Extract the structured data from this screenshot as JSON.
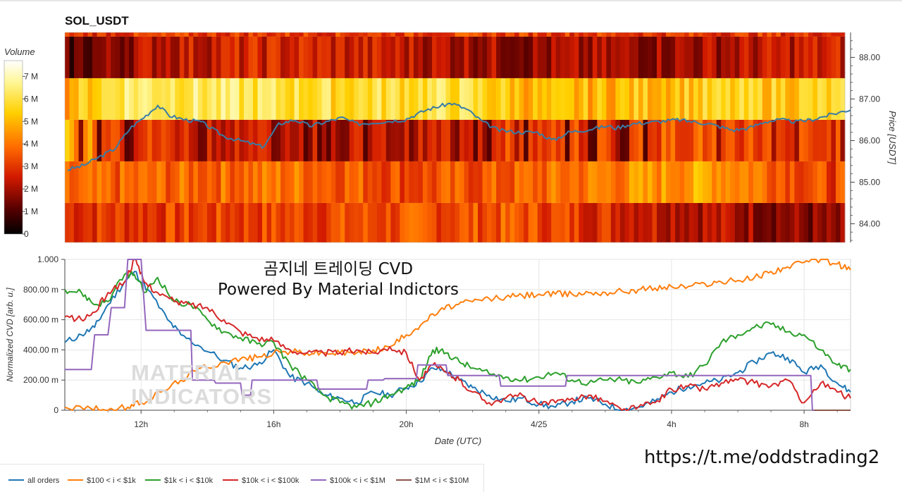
{
  "symbol": "SOL_USDT",
  "volume_title": "Volume",
  "overlay": {
    "title_line1": "곰지네 트레이딩 CVD",
    "title_line2": "Powered By Material Indictors",
    "logo_line1": "MATERIAL",
    "logo_line2": "INDICATORS",
    "link": "https://t.me/oddstrading2"
  },
  "colors": {
    "all_orders": "#1f77b4",
    "s100_1k": "#ff7f0e",
    "s1k_10k": "#2ca02c",
    "s10k_100k": "#d62728",
    "s100k_1m": "#9467bd",
    "s1m_10m": "#8c564b",
    "price_line": "#3a7ca5"
  },
  "chart_data": [
    {
      "type": "heatmap",
      "title": "SOL_USDT",
      "ylabel": "Price [USDT]",
      "ylim": [
        83.55,
        88.6
      ],
      "yticks": [
        "84.00",
        "85.00",
        "86.00",
        "87.00",
        "88.00"
      ],
      "colorbar": {
        "title": "Volume",
        "range": [
          0,
          7700000
        ],
        "ticks": [
          "0",
          "1 M",
          "2 M",
          "3 M",
          "4 M",
          "5 M",
          "6 M",
          "7 M"
        ],
        "colormap": "hot"
      },
      "price_bins": [
        {
          "low": 83.55,
          "high": 84.5,
          "volume_profile": [
            [
              0,
              3.0
            ],
            [
              0.58,
              3.5
            ],
            [
              0.975,
              1.5
            ]
          ]
        },
        {
          "low": 84.5,
          "high": 85.5,
          "volume_profile": [
            [
              0,
              3.5
            ],
            [
              0.3,
              4.0
            ],
            [
              0.45,
              3.3
            ],
            [
              0.58,
              3.6
            ],
            [
              0.83,
              4.8
            ],
            [
              0.975,
              3.2
            ]
          ]
        },
        {
          "low": 85.5,
          "high": 86.5,
          "volume_profile": [
            [
              0,
              5.0
            ],
            [
              0.08,
              3.2
            ],
            [
              0.16,
              2.8
            ],
            [
              0.3,
              2.4
            ],
            [
              0.45,
              2.2
            ],
            [
              0.55,
              3.4
            ],
            [
              0.62,
              3.0
            ],
            [
              0.8,
              3.6
            ],
            [
              0.975,
              3.0
            ]
          ]
        },
        {
          "low": 86.5,
          "high": 87.5,
          "volume_profile": [
            [
              0,
              4.8
            ],
            [
              0.08,
              6.5
            ],
            [
              0.2,
              6.2
            ],
            [
              0.35,
              5.8
            ],
            [
              0.5,
              6.0
            ],
            [
              0.62,
              4.8
            ],
            [
              0.8,
              5.4
            ],
            [
              0.975,
              5.5
            ]
          ]
        },
        {
          "low": 87.5,
          "high": 88.5,
          "volume_profile": [
            [
              0,
              1.0
            ],
            [
              0.12,
              2.4
            ],
            [
              0.3,
              2.7
            ],
            [
              0.5,
              2.2
            ],
            [
              0.6,
              1.8
            ],
            [
              0.8,
              2.0
            ],
            [
              0.975,
              2.5
            ]
          ]
        },
        {
          "low": 88.5,
          "high": 88.6,
          "volume_profile": [
            [
              0,
              3.0
            ],
            [
              0.5,
              3.2
            ],
            [
              1.0,
              3.0
            ]
          ]
        }
      ],
      "price_series": {
        "name": "Price",
        "x": [
          0,
          0.02,
          0.04,
          0.06,
          0.08,
          0.1,
          0.115,
          0.13,
          0.15,
          0.17,
          0.2,
          0.22,
          0.25,
          0.27,
          0.29,
          0.31,
          0.33,
          0.35,
          0.37,
          0.4,
          0.43,
          0.46,
          0.49,
          0.51,
          0.53,
          0.55,
          0.575,
          0.6,
          0.62,
          0.64,
          0.66,
          0.69,
          0.7,
          0.72,
          0.75,
          0.78,
          0.8,
          0.82,
          0.85,
          0.87,
          0.89,
          0.91,
          0.93,
          0.95,
          0.97,
          1.0
        ],
        "y": [
          85.3,
          85.4,
          85.6,
          85.8,
          86.3,
          86.6,
          86.85,
          86.6,
          86.5,
          86.45,
          86.1,
          86.0,
          85.85,
          86.4,
          86.5,
          86.35,
          86.45,
          86.55,
          86.4,
          86.45,
          86.5,
          86.75,
          86.9,
          86.75,
          86.45,
          86.25,
          86.2,
          86.2,
          86.0,
          86.2,
          86.25,
          86.35,
          86.3,
          86.4,
          86.45,
          86.5,
          86.45,
          86.4,
          86.25,
          86.3,
          86.45,
          86.5,
          86.45,
          86.5,
          86.6,
          86.75
        ]
      }
    },
    {
      "type": "line",
      "xlabel": "Date (UTC)",
      "ylabel": "Normalized CVD [arb. u.]",
      "ylim": [
        0,
        1.0
      ],
      "xlim": [
        9.7,
        33.4
      ],
      "xticks": [
        {
          "value": 12,
          "label": "12h"
        },
        {
          "value": 16,
          "label": "16h"
        },
        {
          "value": 20,
          "label": "20h"
        },
        {
          "value": 24,
          "label": "4/25"
        },
        {
          "value": 28,
          "label": "4h"
        },
        {
          "value": 32,
          "label": "8h"
        }
      ],
      "yticks": [
        {
          "value": 0,
          "label": "0"
        },
        {
          "value": 0.2,
          "label": "200.00 m"
        },
        {
          "value": 0.4,
          "label": "400.00 m"
        },
        {
          "value": 0.6,
          "label": "600.00 m"
        },
        {
          "value": 0.8,
          "label": "800.00 m"
        },
        {
          "value": 1.0,
          "label": "1.000"
        }
      ],
      "series": [
        {
          "name": "all orders",
          "legend": "all orders",
          "color_key": "all_orders",
          "x": [
            9.7,
            10.2,
            10.6,
            11.0,
            11.5,
            11.8,
            12.2,
            12.8,
            13.2,
            13.8,
            14.5,
            15.0,
            15.5,
            16.0,
            16.5,
            17.0,
            17.5,
            18.0,
            18.5,
            19.0,
            19.5,
            20.0,
            20.4,
            20.8,
            21.2,
            21.6,
            22.0,
            22.5,
            23.0,
            23.5,
            24.0,
            24.5,
            25.0,
            25.5,
            26.0,
            26.5,
            27.0,
            27.5,
            28.0,
            28.5,
            29.0,
            29.5,
            30.0,
            30.5,
            31.0,
            31.5,
            32.0,
            32.5,
            33.0,
            33.4
          ],
          "y": [
            0.45,
            0.5,
            0.55,
            0.7,
            0.85,
            0.92,
            0.8,
            0.6,
            0.5,
            0.42,
            0.33,
            0.28,
            0.3,
            0.4,
            0.22,
            0.18,
            0.1,
            0.08,
            0.05,
            0.12,
            0.1,
            0.15,
            0.19,
            0.28,
            0.26,
            0.2,
            0.15,
            0.1,
            0.06,
            0.08,
            0.04,
            0.02,
            0.06,
            0.08,
            0.04,
            0.0,
            0.02,
            0.06,
            0.12,
            0.16,
            0.18,
            0.2,
            0.25,
            0.32,
            0.38,
            0.35,
            0.25,
            0.3,
            0.18,
            0.12
          ]
        },
        {
          "name": "$100 < i < $1k",
          "legend": "$100 < i < $1k",
          "color_key": "s100_1k",
          "x": [
            9.7,
            10.5,
            11.0,
            11.6,
            12.0,
            12.6,
            13.2,
            13.8,
            14.5,
            15.0,
            15.5,
            16.0,
            16.5,
            17.0,
            17.5,
            18.0,
            18.5,
            19.0,
            19.5,
            20.0,
            20.5,
            21.0,
            21.5,
            22.0,
            22.5,
            23.0,
            23.5,
            24.0,
            24.5,
            25.0,
            25.5,
            26.0,
            26.5,
            27.0,
            27.5,
            28.0,
            28.5,
            29.0,
            29.5,
            30.0,
            30.5,
            31.0,
            31.5,
            32.0,
            32.5,
            33.0,
            33.4
          ],
          "y": [
            0.02,
            0.01,
            0.0,
            0.02,
            0.05,
            0.12,
            0.2,
            0.28,
            0.32,
            0.34,
            0.35,
            0.38,
            0.39,
            0.38,
            0.38,
            0.38,
            0.38,
            0.4,
            0.42,
            0.5,
            0.58,
            0.66,
            0.7,
            0.72,
            0.74,
            0.75,
            0.76,
            0.77,
            0.77,
            0.77,
            0.78,
            0.78,
            0.79,
            0.8,
            0.81,
            0.82,
            0.82,
            0.84,
            0.85,
            0.86,
            0.88,
            0.92,
            0.95,
            0.98,
            1.0,
            0.97,
            0.93
          ]
        },
        {
          "name": "$1k < i < $10k",
          "legend": "$1k < i < $10k",
          "color_key": "s1k_10k",
          "x": [
            9.7,
            10.2,
            10.6,
            11.0,
            11.5,
            11.8,
            12.1,
            12.5,
            13.0,
            13.5,
            14.0,
            14.5,
            15.0,
            15.5,
            16.0,
            16.5,
            17.0,
            17.5,
            18.0,
            18.5,
            19.0,
            19.5,
            20.0,
            20.4,
            20.8,
            21.2,
            21.6,
            22.0,
            22.5,
            23.0,
            23.5,
            24.0,
            24.5,
            25.0,
            25.5,
            26.0,
            26.5,
            27.0,
            27.5,
            28.0,
            28.5,
            29.0,
            29.5,
            30.0,
            30.5,
            31.0,
            31.5,
            32.0,
            32.5,
            33.0,
            33.4
          ],
          "y": [
            0.8,
            0.78,
            0.7,
            0.72,
            0.9,
            0.9,
            0.78,
            0.88,
            0.72,
            0.7,
            0.6,
            0.52,
            0.48,
            0.44,
            0.45,
            0.3,
            0.2,
            0.1,
            0.05,
            0.02,
            0.05,
            0.1,
            0.15,
            0.2,
            0.4,
            0.38,
            0.32,
            0.28,
            0.24,
            0.22,
            0.2,
            0.22,
            0.25,
            0.2,
            0.18,
            0.2,
            0.2,
            0.18,
            0.22,
            0.25,
            0.22,
            0.3,
            0.45,
            0.5,
            0.55,
            0.57,
            0.52,
            0.5,
            0.4,
            0.3,
            0.27
          ]
        },
        {
          "name": "$10k < i < $100k",
          "legend": "$10k < i < $100k",
          "color_key": "s10k_100k",
          "x": [
            9.7,
            10.2,
            10.6,
            11.0,
            11.5,
            11.8,
            12.1,
            12.5,
            13.0,
            13.5,
            14.0,
            14.5,
            15.0,
            15.5,
            16.0,
            16.5,
            17.0,
            17.5,
            18.0,
            18.5,
            19.0,
            19.5,
            20.0,
            20.4,
            20.8,
            21.2,
            21.6,
            22.0,
            22.5,
            23.0,
            23.5,
            24.0,
            24.5,
            25.0,
            25.5,
            26.0,
            26.5,
            27.0,
            27.5,
            28.0,
            28.5,
            29.0,
            29.5,
            30.0,
            30.5,
            31.0,
            31.5,
            32.0,
            32.5,
            33.0,
            33.4
          ],
          "y": [
            0.62,
            0.6,
            0.65,
            0.78,
            0.85,
            1.0,
            0.85,
            0.78,
            0.72,
            0.7,
            0.68,
            0.6,
            0.52,
            0.48,
            0.46,
            0.4,
            0.38,
            0.38,
            0.38,
            0.4,
            0.38,
            0.42,
            0.38,
            0.2,
            0.3,
            0.25,
            0.2,
            0.12,
            0.05,
            0.08,
            0.1,
            0.04,
            0.05,
            0.08,
            0.1,
            0.06,
            0.0,
            0.02,
            0.05,
            0.14,
            0.16,
            0.14,
            0.18,
            0.2,
            0.18,
            0.16,
            0.2,
            0.05,
            0.18,
            0.12,
            0.08
          ]
        },
        {
          "name": "$100k < i < $1M",
          "legend": "$100k < i < $1M",
          "color_key": "s100k_1m",
          "x": [
            9.7,
            10.5,
            10.6,
            11.0,
            11.1,
            11.5,
            11.6,
            12.0,
            12.15,
            13.5,
            13.55,
            14.2,
            14.25,
            15.0,
            15.05,
            15.3,
            15.35,
            17.3,
            17.35,
            18.8,
            18.85,
            19.3,
            19.35,
            20.3,
            20.35,
            21.2,
            21.25,
            22.8,
            22.85,
            24.8,
            24.85,
            32.2,
            32.25,
            33.4
          ],
          "y": [
            0.27,
            0.27,
            0.5,
            0.5,
            0.68,
            0.68,
            1.0,
            1.0,
            0.53,
            0.53,
            0.2,
            0.2,
            0.18,
            0.18,
            0.1,
            0.1,
            0.2,
            0.2,
            0.14,
            0.14,
            0.2,
            0.2,
            0.21,
            0.21,
            0.3,
            0.3,
            0.23,
            0.23,
            0.16,
            0.16,
            0.23,
            0.23,
            0.0,
            0.0
          ]
        },
        {
          "name": "$1M < i < $10M",
          "legend": "$1M < i < $10M",
          "color_key": "s1m_10m",
          "x": [
            32.3,
            33.4
          ],
          "y": [
            0.0,
            0.0
          ]
        }
      ]
    }
  ]
}
